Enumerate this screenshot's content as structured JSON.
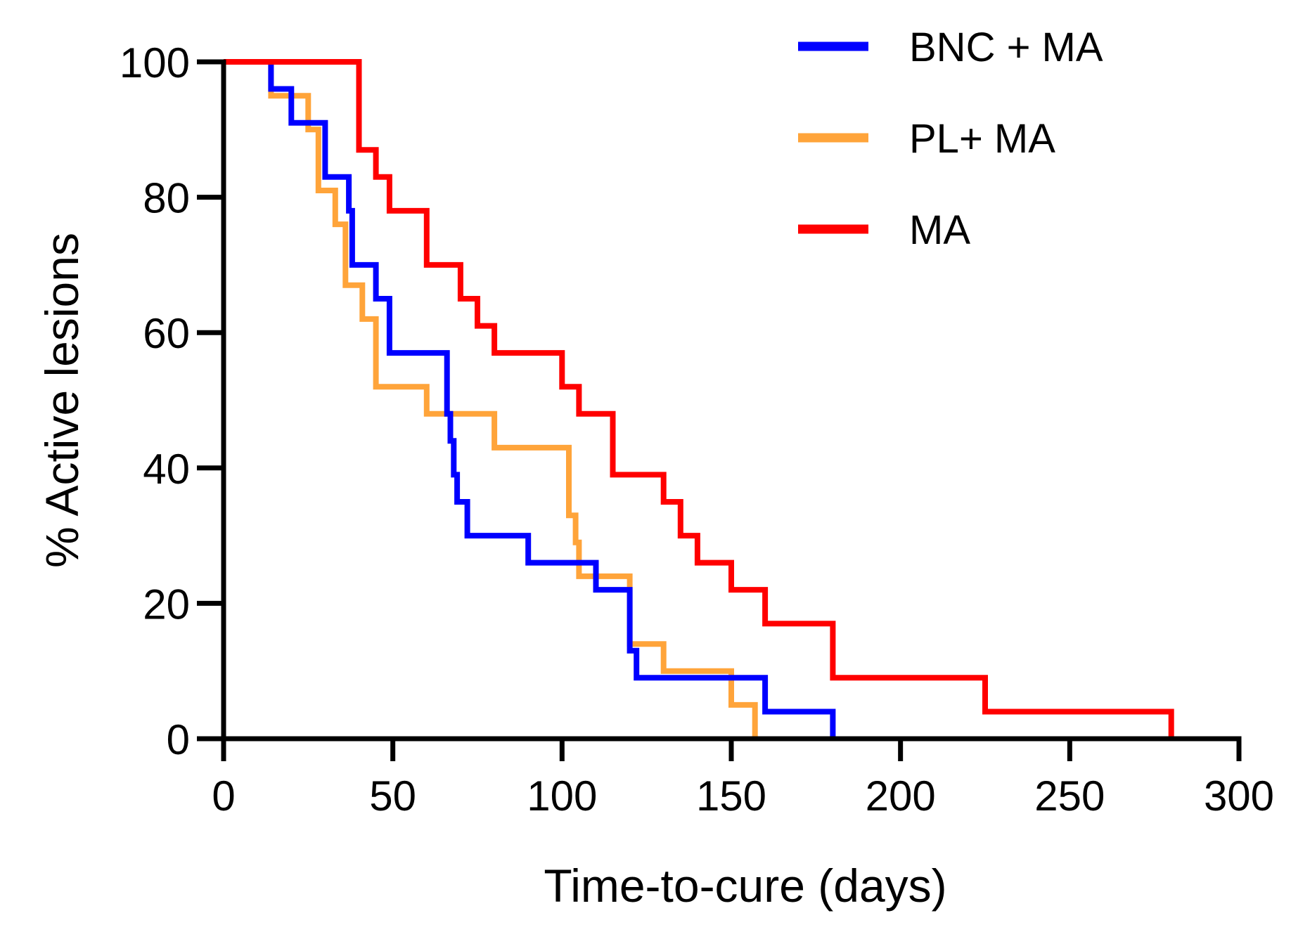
{
  "chart_data": {
    "type": "line",
    "subtype": "step-survival",
    "title": "",
    "xlabel": "Time-to-cure (days)",
    "ylabel": "% Active lesions",
    "xlim": [
      0,
      300
    ],
    "ylim": [
      0,
      100
    ],
    "x_ticks": [
      0,
      50,
      100,
      150,
      200,
      250,
      300
    ],
    "y_ticks": [
      0,
      20,
      40,
      60,
      80,
      100
    ],
    "x_tick_labels": [
      "0",
      "50",
      "100",
      "150",
      "200",
      "250",
      "300"
    ],
    "y_tick_labels": [
      "0",
      "20",
      "40",
      "60",
      "80",
      "100"
    ],
    "grid": false,
    "legend_position": "top-right",
    "series": [
      {
        "name": "BNC + MA",
        "color": "#0000ff",
        "points": [
          [
            0,
            100
          ],
          [
            14,
            100
          ],
          [
            14,
            96
          ],
          [
            20,
            96
          ],
          [
            20,
            91
          ],
          [
            30,
            91
          ],
          [
            30,
            83
          ],
          [
            37,
            83
          ],
          [
            37,
            78
          ],
          [
            38,
            78
          ],
          [
            38,
            70
          ],
          [
            45,
            70
          ],
          [
            45,
            65
          ],
          [
            49,
            65
          ],
          [
            49,
            57
          ],
          [
            66,
            57
          ],
          [
            66,
            48
          ],
          [
            67,
            48
          ],
          [
            67,
            44
          ],
          [
            68,
            44
          ],
          [
            68,
            39
          ],
          [
            69,
            39
          ],
          [
            69,
            35
          ],
          [
            72,
            35
          ],
          [
            72,
            30
          ],
          [
            90,
            30
          ],
          [
            90,
            26
          ],
          [
            110,
            26
          ],
          [
            110,
            22
          ],
          [
            120,
            22
          ],
          [
            120,
            13
          ],
          [
            122,
            13
          ],
          [
            122,
            9
          ],
          [
            160,
            9
          ],
          [
            160,
            4
          ],
          [
            180,
            4
          ],
          [
            180,
            0
          ]
        ]
      },
      {
        "name": "PL+ MA",
        "color": "#ffa43a",
        "points": [
          [
            0,
            100
          ],
          [
            14,
            100
          ],
          [
            14,
            95
          ],
          [
            25,
            95
          ],
          [
            25,
            90
          ],
          [
            28,
            90
          ],
          [
            28,
            81
          ],
          [
            33,
            81
          ],
          [
            33,
            76
          ],
          [
            36,
            76
          ],
          [
            36,
            67
          ],
          [
            41,
            67
          ],
          [
            41,
            62
          ],
          [
            45,
            62
          ],
          [
            45,
            52
          ],
          [
            60,
            52
          ],
          [
            60,
            48
          ],
          [
            80,
            48
          ],
          [
            80,
            43
          ],
          [
            102,
            43
          ],
          [
            102,
            33
          ],
          [
            104,
            33
          ],
          [
            104,
            29
          ],
          [
            105,
            29
          ],
          [
            105,
            24
          ],
          [
            120,
            24
          ],
          [
            120,
            14
          ],
          [
            130,
            14
          ],
          [
            130,
            10
          ],
          [
            150,
            10
          ],
          [
            150,
            5
          ],
          [
            157,
            5
          ],
          [
            157,
            0
          ]
        ]
      },
      {
        "name": "MA",
        "color": "#ff0000",
        "points": [
          [
            0,
            100
          ],
          [
            40,
            100
          ],
          [
            40,
            87
          ],
          [
            45,
            87
          ],
          [
            45,
            83
          ],
          [
            49,
            83
          ],
          [
            49,
            78
          ],
          [
            60,
            78
          ],
          [
            60,
            70
          ],
          [
            70,
            70
          ],
          [
            70,
            65
          ],
          [
            75,
            65
          ],
          [
            75,
            61
          ],
          [
            80,
            61
          ],
          [
            80,
            57
          ],
          [
            100,
            57
          ],
          [
            100,
            52
          ],
          [
            105,
            52
          ],
          [
            105,
            48
          ],
          [
            115,
            48
          ],
          [
            115,
            39
          ],
          [
            130,
            39
          ],
          [
            130,
            35
          ],
          [
            135,
            35
          ],
          [
            135,
            30
          ],
          [
            140,
            30
          ],
          [
            140,
            26
          ],
          [
            150,
            26
          ],
          [
            150,
            22
          ],
          [
            160,
            22
          ],
          [
            160,
            17
          ],
          [
            180,
            17
          ],
          [
            180,
            9
          ],
          [
            225,
            9
          ],
          [
            225,
            4
          ],
          [
            280,
            4
          ],
          [
            280,
            0
          ]
        ]
      }
    ]
  }
}
